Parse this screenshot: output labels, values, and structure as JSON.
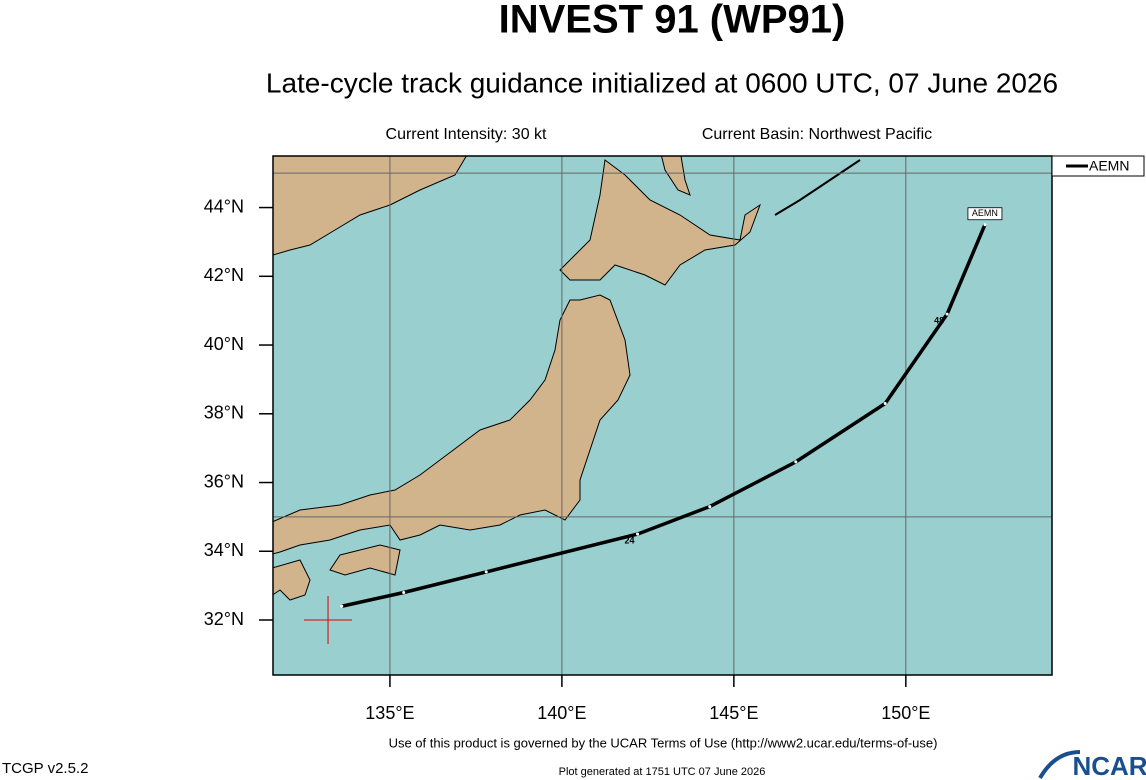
{
  "chart_data": {
    "type": "track",
    "title": "INVEST 91 (WP91)",
    "subtitle": "Late-cycle track guidance initialized at 0600 UTC, 07 June 2026",
    "intensity": "Current Intensity: 30 kt",
    "basin": "Current Basin: Northwest Pacific",
    "xlim": [
      131.6,
      154.25
    ],
    "ylim": [
      30.4,
      45.5
    ],
    "xticks": [
      {
        "value": 135,
        "label": "135°E"
      },
      {
        "value": 140,
        "label": "140°E"
      },
      {
        "value": 145,
        "label": "145°E"
      },
      {
        "value": 150,
        "label": "150°E"
      }
    ],
    "yticks": [
      {
        "value": 32,
        "label": "32°N"
      },
      {
        "value": 34,
        "label": "34°N"
      },
      {
        "value": 36,
        "label": "36°N"
      },
      {
        "value": 38,
        "label": "38°N"
      },
      {
        "value": 40,
        "label": "40°N"
      },
      {
        "value": 42,
        "label": "42°N"
      },
      {
        "value": 44,
        "label": "44°N"
      }
    ],
    "ygrid": [
      35,
      45
    ],
    "grid": true,
    "current_position": {
      "lon": 133.2,
      "lat": 32.0,
      "color": "#dd0000"
    },
    "series": [
      {
        "name": "AEMN",
        "color": "#000000",
        "x": [
          133.6,
          135.4,
          137.8,
          142.2,
          144.3,
          146.8,
          149.4,
          151.2,
          152.3
        ],
        "y": [
          32.4,
          32.8,
          33.4,
          34.5,
          35.3,
          36.6,
          38.3,
          40.9,
          43.5
        ],
        "point_labels": [
          null,
          null,
          null,
          "24",
          null,
          null,
          null,
          "48",
          null
        ]
      }
    ],
    "legend": "top-right",
    "terms": "Use of this product is governed by the UCAR Terms of Use (http://www2.ucar.edu/terms-of-use)",
    "version": "TCGP v2.5.2",
    "generated": "Plot generated at 1751 UTC   07 June 2026",
    "logo": "NCAR"
  }
}
